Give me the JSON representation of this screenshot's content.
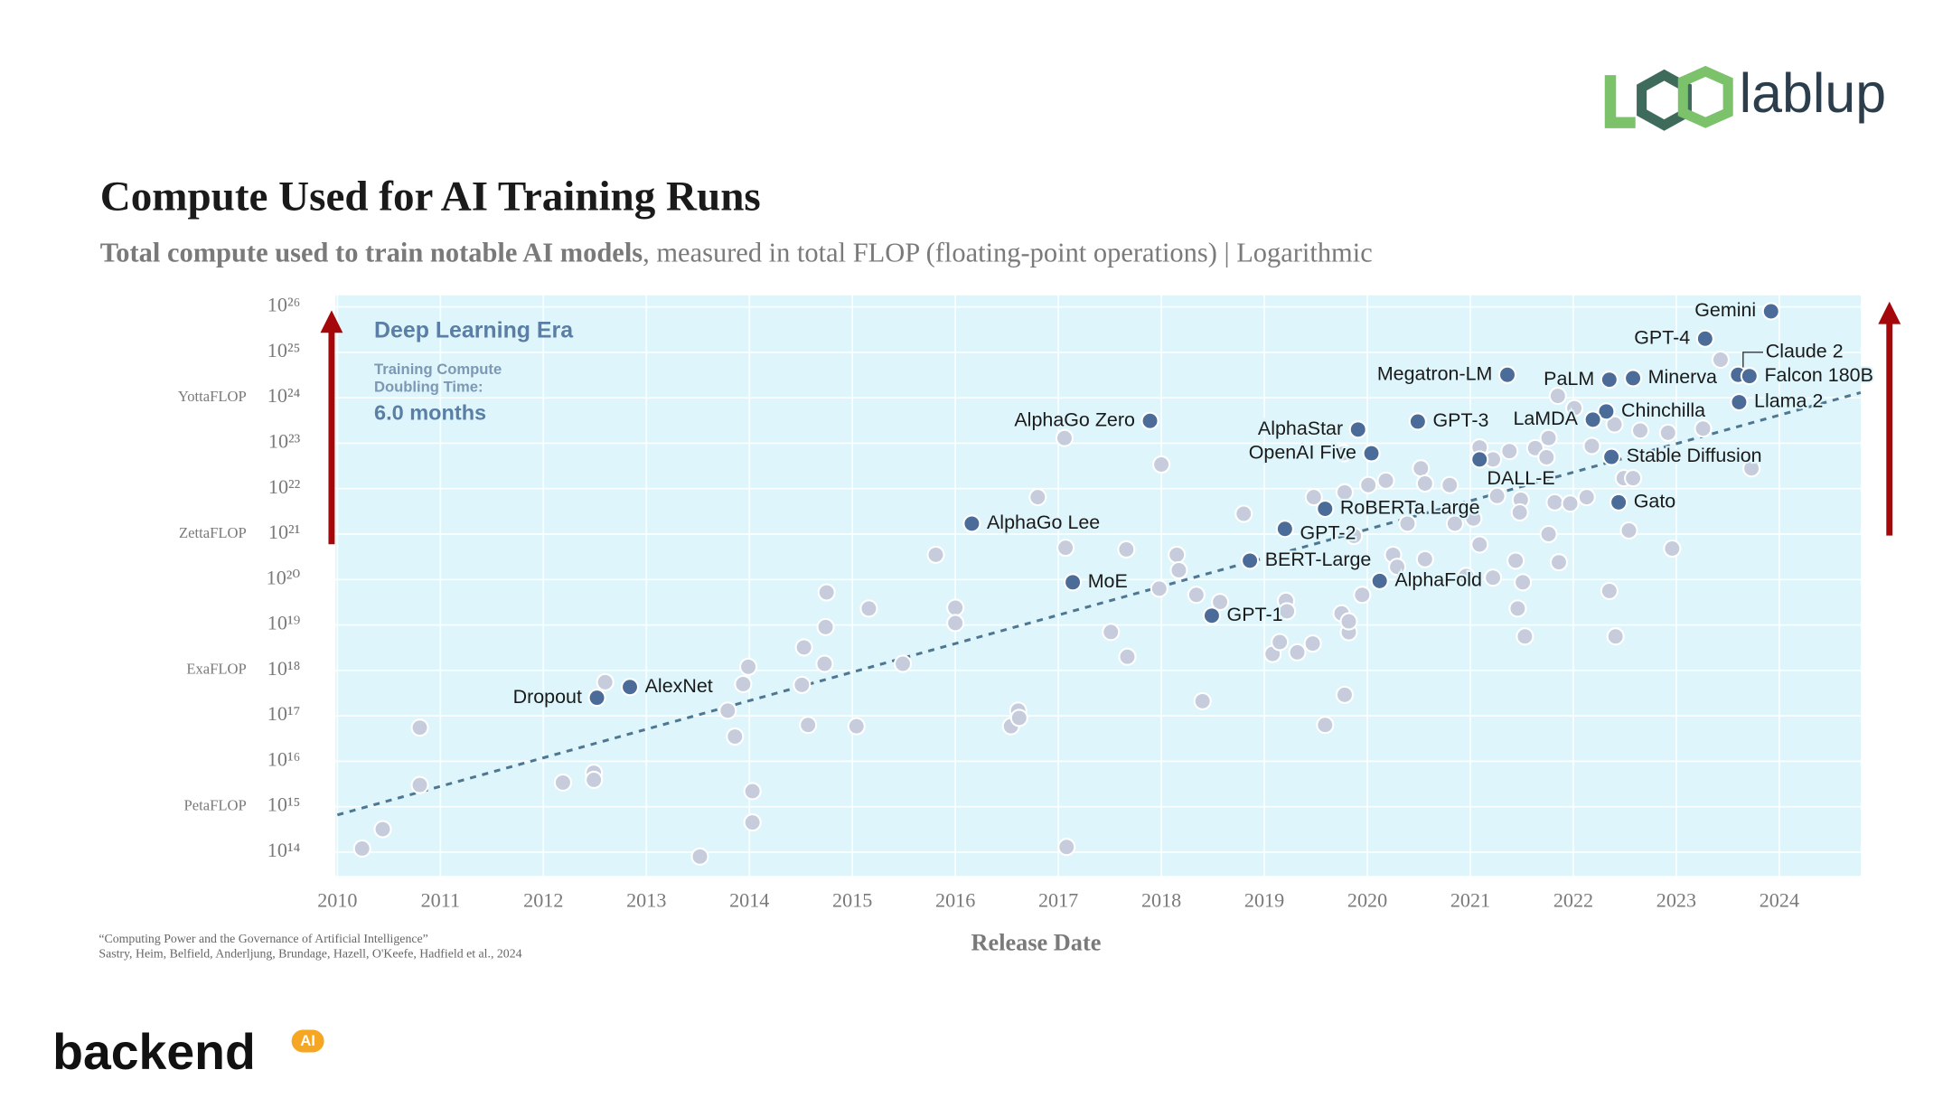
{
  "header": {
    "logo_right": "lablup",
    "logo_left": "backend",
    "logo_badge": "AI"
  },
  "chart_data": {
    "type": "scatter",
    "title": "Compute Used for AI Training Runs",
    "subtitle_bold": "Total compute used to train notable AI models",
    "subtitle": ", measured in total FLOP (floating-point operations) | Logarithmic",
    "x_label": "Release Date",
    "source": [
      "“Computing Power and the Governance of Artificial Intelligence”",
      "Sastry, Heim, Belfield, Anderljung, Brundage, Hazell, O'Keefe, Hadfield et al., 2024"
    ],
    "annotations": {
      "era": "Deep Learning Era",
      "doubling_line1": "Training Compute",
      "doubling_line2": "Doubling Time:",
      "doubling_value": "6.0 months"
    },
    "log_y": true,
    "grid": true,
    "xlim": [
      2009.98,
      2024.79
    ],
    "ylim": [
      30000000000000.0,
      1.8e+26
    ],
    "xticks": [
      2010,
      2011,
      2012,
      2013,
      2014,
      2015,
      2016,
      2017,
      2018,
      2019,
      2020,
      2021,
      2022,
      2023,
      2024
    ],
    "yticks": [
      {
        "value": 100000000000000.0,
        "label": "10¹⁴"
      },
      {
        "value": 1000000000000000.0,
        "label": "10¹⁵"
      },
      {
        "value": 1e+16,
        "label": "10¹⁶"
      },
      {
        "value": 1e+17,
        "label": "10¹⁷"
      },
      {
        "value": 1e+18,
        "label": "10¹⁸"
      },
      {
        "value": 1e+19,
        "label": "10¹⁹"
      },
      {
        "value": 1e+20,
        "label": "10²⁰"
      },
      {
        "value": 1e+21,
        "label": "10²¹"
      },
      {
        "value": 1e+22,
        "label": "10²²"
      },
      {
        "value": 1e+23,
        "label": "10²³"
      },
      {
        "value": 1e+24,
        "label": "10²⁴"
      },
      {
        "value": 1e+25,
        "label": "10²⁵"
      },
      {
        "value": 1e+26,
        "label": "10²⁶"
      }
    ],
    "unit_labels": [
      {
        "value": 1000000000000000.0,
        "label": "PetaFLOP"
      },
      {
        "value": 1e+18,
        "label": "ExaFLOP"
      },
      {
        "value": 1e+21,
        "label": "ZettaFLOP"
      },
      {
        "value": 1e+24,
        "label": "YottaFLOP"
      }
    ],
    "trend_line": {
      "x": [
        2010,
        2024.79
      ],
      "values": [
        660000000000000.0,
        1.3e+24
      ],
      "color": "#4f7791"
    },
    "series": [
      {
        "color": "#c6ccdc",
        "x": [
          2010.24,
          2010.44,
          2010.8,
          2010.8,
          2012.19,
          2012.49,
          2012.49,
          2012.6,
          2013.52,
          2013.79,
          2013.86,
          2013.94,
          2013.99,
          2014.03,
          2014.03,
          2014.51,
          2014.53,
          2014.57,
          2014.73,
          2014.74,
          2014.75,
          2015.04,
          2015.16,
          2015.49,
          2015.81,
          2016.0,
          2016.0,
          2016.54,
          2016.61,
          2016.62,
          2016.8,
          2017.06,
          2017.07,
          2017.08,
          2017.51,
          2017.66,
          2017.67,
          2017.98,
          2018.0,
          2018.15,
          2018.17,
          2018.34,
          2018.4,
          2018.57,
          2018.8,
          2019.08,
          2019.15,
          2019.21,
          2019.22,
          2019.32,
          2019.47,
          2019.48,
          2019.59,
          2019.75,
          2019.78,
          2019.78,
          2019.82,
          2019.82,
          2019.77,
          2019.87,
          2019.95,
          2020.01,
          2020.18,
          2020.25,
          2020.29,
          2020.39,
          2020.52,
          2020.56,
          2020.56,
          2020.8,
          2020.85,
          2020.96,
          2021.03,
          2021.09,
          2021.09,
          2021.22,
          2021.22,
          2021.26,
          2021.38,
          2021.44,
          2021.46,
          2021.49,
          2021.51,
          2021.53,
          2021.48,
          2021.63,
          2021.74,
          2021.76,
          2021.76,
          2021.82,
          2021.85,
          2021.86,
          2021.97,
          2022.01,
          2022.13,
          2022.18,
          2022.35,
          2022.4,
          2022.41,
          2022.49,
          2022.54,
          2022.58,
          2022.65,
          2022.92,
          2022.96,
          2023.26,
          2023.43,
          2023.73
        ],
        "values": [
          120000000000000.0,
          320000000000000.0,
          5.5e+16,
          3000000000000000.0,
          3400000000000000.0,
          5600000000000000.0,
          3900000000000000.0,
          5.5e+17,
          80000000000000.0,
          1.3e+17,
          3.5e+16,
          5e+17,
          1.2e+18,
          2200000000000000.0,
          450000000000000.0,
          4.8e+17,
          3.2e+18,
          6.3e+16,
          1.4e+18,
          9e+18,
          5.2e+19,
          5.9e+16,
          2.3e+19,
          1.4e+18,
          3.5e+20,
          2.4e+19,
          1.1e+19,
          5.9e+16,
          1.3e+17,
          9e+16,
          6.5e+21,
          1.3e+23,
          5e+20,
          130000000000000.0,
          7e+18,
          4.6e+20,
          2e+18,
          6.3e+19,
          3.4e+22,
          3.5e+20,
          1.6e+20,
          4.6e+19,
          2.1e+17,
          3.2e+19,
          2.8e+21,
          2.3e+18,
          4.2e+18,
          3.4e+19,
          2e+19,
          2.5e+18,
          3.9e+18,
          6.5e+21,
          6.3e+16,
          1.8e+19,
          2.9e+17,
          8.3e+21,
          6.9e+18,
          1.2e+19,
          6e+22,
          9.1e+20,
          4.6e+19,
          1.2e+22,
          1.5e+22,
          3.5e+20,
          1.9e+20,
          1.7e+21,
          2.8e+22,
          1.3e+22,
          2.8e+20,
          1.2e+22,
          1.7e+21,
          1.2e+20,
          2.2e+21,
          8.1e+22,
          5.9e+20,
          4.4e+22,
          1.1e+20,
          6.9e+21,
          6.7e+22,
          2.6e+20,
          2.3e+19,
          5.7e+21,
          8.7e+19,
          5.6e+18,
          3e+21,
          7.8e+22,
          4.9e+22,
          1e+21,
          1.3e+23,
          5e+21,
          1.1e+24,
          2.4e+20,
          4.7e+21,
          5.9e+23,
          6.5e+21,
          8.7e+22,
          5.6e+19,
          2.6e+23,
          5.6e+18,
          1.7e+22,
          1.2e+21,
          1.7e+22,
          1.9e+23,
          1.7e+23,
          4.8e+20,
          2.1e+23,
          6.9e+24,
          2.8e+22
        ]
      },
      {
        "color": "#4b6c98",
        "labels": [
          "Gemini",
          "GPT-4",
          "Claude 2",
          "Falcon 180B",
          "Llama 2",
          "Megatron-LM",
          "PaLM",
          "Minerva",
          "Chinchilla",
          "LaMDA",
          "GPT-3",
          "AlphaStar",
          "OpenAI Five",
          "AlphaGo Zero",
          "Stable Diffusion",
          "DALL-E",
          "Gato",
          "RoBERTa Large",
          "GPT-2",
          "AlphaGo Lee",
          "BERT-Large",
          "AlphaFold",
          "MoE",
          "GPT-1",
          "AlexNet",
          "Dropout"
        ],
        "x": [
          2023.92,
          2023.28,
          2023.6,
          2023.71,
          2023.61,
          2021.36,
          2022.35,
          2022.58,
          2022.32,
          2022.19,
          2020.49,
          2019.91,
          2020.04,
          2017.89,
          2022.37,
          2021.09,
          2022.44,
          2019.59,
          2019.2,
          2016.16,
          2018.86,
          2020.12,
          2017.14,
          2018.49,
          2012.84,
          2012.52
        ],
        "values": [
          8e+25,
          2e+25,
          3.2e+24,
          3e+24,
          8e+23,
          3.2e+24,
          2.5e+24,
          2.7e+24,
          5e+23,
          3.3e+23,
          3e+23,
          2e+23,
          6e+22,
          3.1e+23,
          5e+22,
          4.4e+22,
          5e+21,
          3.6e+21,
          1.3e+21,
          1.7e+21,
          2.6e+20,
          9.3e+19,
          8.7e+19,
          1.6e+19,
          4.3e+17,
          2.5e+17
        ]
      }
    ]
  }
}
